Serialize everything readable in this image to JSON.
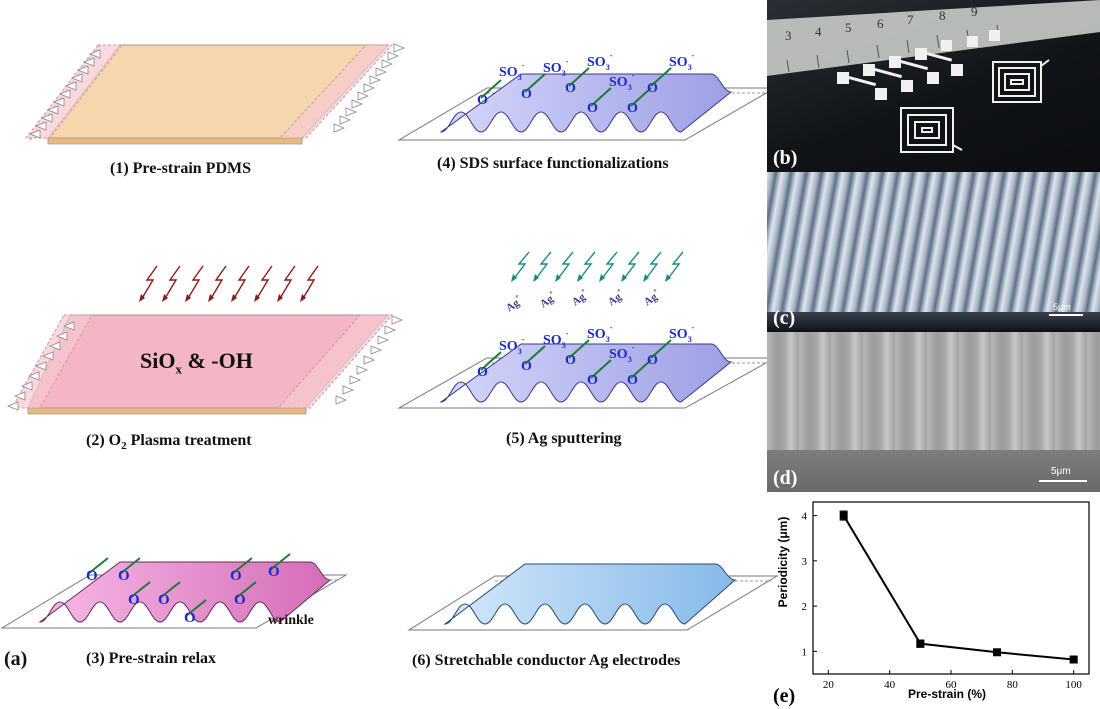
{
  "steps": [
    {
      "caption": "(1) Pre-strain PDMS"
    },
    {
      "caption_pre": "(2) O",
      "caption_sub": "2",
      "caption_post": " Plasma treatment",
      "label_main": "SiO",
      "label_sub": "x",
      "label_post": " & -OH"
    },
    {
      "caption": "(3) Pre-strain relax",
      "label": "wrinkle"
    },
    {
      "caption": "(4) SDS surface functionalizations"
    },
    {
      "caption": "(5) Ag sputtering"
    },
    {
      "caption": "(6) Stretchable conductor Ag electrodes"
    }
  ],
  "molecule": {
    "oxygen": "O",
    "sulfonate": "SO",
    "sulfonate_sub": "3",
    "sulfonate_sup": "-",
    "ion": "Ag",
    "ion_sup": "+"
  },
  "panel_labels": {
    "a": "(a)",
    "b": "(b)",
    "c": "(c)",
    "d": "(d)",
    "e": "(e)"
  },
  "photos": {
    "b": {
      "ruler_numbers": [
        "3",
        "4",
        "5",
        "6",
        "7",
        "8",
        "9"
      ]
    },
    "c": {
      "scale_bar": "5μm"
    },
    "d": {
      "scale_bar": "5μm"
    }
  },
  "colors": {
    "pdms": "#f5d6ad",
    "plasma": "#f4b6c4",
    "wrinkle_pink": "#e58ac8",
    "sds_purple": "#b7b8ee",
    "ag_blue": "#9cc8f0",
    "arrow_red": "#8b1a1a",
    "arrow_teal": "#1c8a80",
    "oxygen_blue": "#1a2ad0"
  },
  "chart_data": {
    "type": "line",
    "xlabel": "Pre-strain (%)",
    "ylabel": "Periodicity (μm)",
    "x": [
      25,
      50,
      75,
      100
    ],
    "y": [
      4.0,
      1.17,
      0.98,
      0.82
    ],
    "error": [
      0.1,
      0.08,
      0.07,
      0.06
    ],
    "xlim": [
      15,
      105
    ],
    "ylim": [
      0.5,
      4.3
    ],
    "xticks": [
      20,
      40,
      60,
      80,
      100
    ],
    "yticks": [
      1,
      2,
      3,
      4
    ],
    "grid": false
  }
}
